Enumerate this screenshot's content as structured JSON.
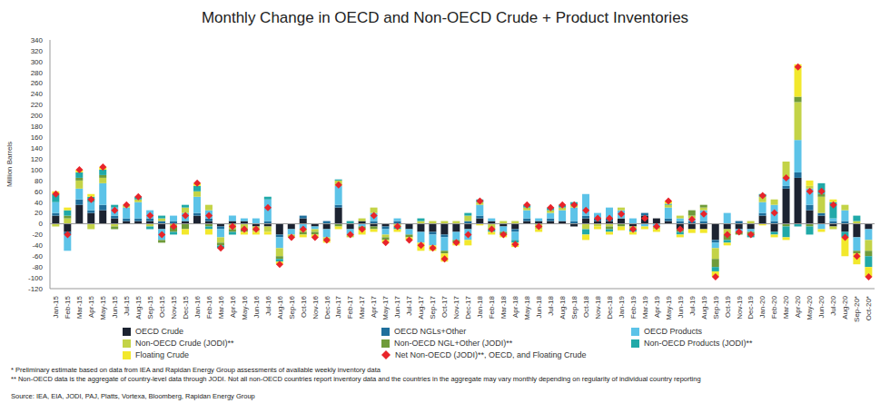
{
  "chart_data": {
    "type": "bar",
    "title": "Monthly Change in OECD and Non-OECD Crude + Product Inventories",
    "y_label": "Million Barrels",
    "stacked": true,
    "grid": false,
    "legend": "bottom",
    "ylim": [
      -120,
      340
    ],
    "yticks": [
      -120,
      -100,
      -80,
      -60,
      -40,
      -20,
      0,
      20,
      40,
      60,
      80,
      100,
      120,
      140,
      160,
      180,
      200,
      220,
      240,
      260,
      280,
      300,
      320,
      340
    ],
    "categories": [
      "Jan-15",
      "Feb-15",
      "Mar-15",
      "Apr-15",
      "May-15",
      "Jun-15",
      "Jul-15",
      "Aug-15",
      "Sep-15",
      "Oct-15",
      "Nov-15",
      "Dec-15",
      "Jan-16",
      "Feb-16",
      "Mar-16",
      "Apr-16",
      "May-16",
      "Jun-16",
      "Jul-16",
      "Aug-16",
      "Sep-16",
      "Oct-16",
      "Nov-16",
      "Dec-16",
      "Jan-17",
      "Feb-17",
      "Mar-17",
      "Apr-17",
      "May-17",
      "Jun-17",
      "Jul-17",
      "Aug-17",
      "Sep-17",
      "Oct-17",
      "Nov-17",
      "Dec-17",
      "Jan-18",
      "Feb-18",
      "Mar-18",
      "Apr-18",
      "May-18",
      "Jun-18",
      "Jul-18",
      "Aug-18",
      "Sep-18",
      "Oct-18",
      "Nov-18",
      "Dec-18",
      "Jan-19",
      "Feb-19",
      "Mar-19",
      "Apr-19",
      "May-19",
      "Jun-19",
      "Jul-19",
      "Aug-19",
      "Sep-19",
      "Oct-19",
      "Nov-19",
      "Dec-19",
      "Jan-20",
      "Feb-20",
      "Mar-20",
      "Apr-20",
      "May-20",
      "Jun-20",
      "Jul-20",
      "Aug-20",
      "Sep-20*",
      "Oct-20*"
    ],
    "series": [
      {
        "name": "OECD Crude",
        "type": "bar",
        "color": "#1c2331",
        "values": [
          15,
          -15,
          35,
          20,
          25,
          10,
          5,
          5,
          5,
          -10,
          0,
          5,
          15,
          5,
          -5,
          5,
          5,
          -5,
          -5,
          -20,
          -10,
          10,
          -5,
          -10,
          30,
          -10,
          5,
          -5,
          -5,
          0,
          -10,
          -15,
          -15,
          -20,
          -15,
          -10,
          10,
          5,
          -5,
          -10,
          5,
          5,
          5,
          5,
          -5,
          10,
          5,
          5,
          10,
          -5,
          15,
          10,
          5,
          -10,
          -10,
          -10,
          -30,
          -10,
          -10,
          -10,
          15,
          -15,
          65,
          85,
          25,
          15,
          -5,
          -15,
          -25,
          -10
        ]
      },
      {
        "name": "OECD NGLs+Other",
        "type": "bar",
        "color": "#1f6f9c",
        "values": [
          5,
          -5,
          10,
          5,
          10,
          5,
          5,
          5,
          5,
          5,
          5,
          0,
          5,
          5,
          -5,
          0,
          0,
          0,
          5,
          -5,
          0,
          5,
          0,
          5,
          5,
          0,
          0,
          5,
          -5,
          5,
          0,
          0,
          -5,
          -5,
          0,
          5,
          5,
          0,
          0,
          -5,
          5,
          0,
          5,
          0,
          5,
          5,
          5,
          5,
          0,
          0,
          5,
          0,
          5,
          5,
          5,
          5,
          -5,
          0,
          5,
          0,
          5,
          5,
          5,
          10,
          10,
          5,
          5,
          5,
          0,
          0
        ]
      },
      {
        "name": "OECD Products",
        "type": "bar",
        "color": "#5cc3e8",
        "values": [
          20,
          -30,
          20,
          15,
          40,
          15,
          20,
          30,
          15,
          -20,
          10,
          15,
          30,
          15,
          -15,
          10,
          5,
          10,
          40,
          -20,
          -10,
          -10,
          -5,
          -15,
          35,
          -10,
          -5,
          15,
          -10,
          5,
          -10,
          -20,
          -20,
          -25,
          -15,
          -20,
          20,
          5,
          -10,
          -15,
          15,
          5,
          10,
          20,
          25,
          40,
          10,
          20,
          15,
          10,
          -5,
          -5,
          20,
          5,
          5,
          20,
          -10,
          20,
          -5,
          -5,
          20,
          30,
          15,
          60,
          30,
          -10,
          5,
          20,
          -25,
          -20
        ]
      },
      {
        "name": "Non-OECD Crude (JODI)**",
        "type": "bar",
        "color": "#c3d347",
        "values": [
          -5,
          10,
          15,
          -10,
          10,
          -5,
          5,
          5,
          -5,
          5,
          -5,
          10,
          10,
          10,
          -10,
          -10,
          -10,
          -10,
          -10,
          -15,
          -5,
          -5,
          -5,
          -5,
          10,
          -5,
          5,
          10,
          -5,
          -5,
          0,
          5,
          5,
          5,
          5,
          10,
          5,
          -10,
          5,
          5,
          5,
          -10,
          5,
          5,
          5,
          -10,
          -5,
          -5,
          5,
          -5,
          0,
          -5,
          5,
          5,
          5,
          5,
          -20,
          -10,
          0,
          5,
          10,
          10,
          30,
          70,
          5,
          30,
          -5,
          10,
          5,
          -20
        ]
      },
      {
        "name": "Non-OECD NGL+Other (JODI)**",
        "type": "bar",
        "color": "#6f9b3a",
        "values": [
          0,
          5,
          5,
          0,
          5,
          -5,
          0,
          0,
          0,
          -5,
          -10,
          -10,
          0,
          -5,
          -5,
          -5,
          -5,
          0,
          0,
          -5,
          0,
          -5,
          -5,
          0,
          -5,
          0,
          -5,
          -5,
          -5,
          0,
          -5,
          0,
          0,
          -5,
          -5,
          0,
          0,
          0,
          -5,
          0,
          0,
          0,
          0,
          0,
          0,
          0,
          0,
          -5,
          -5,
          0,
          0,
          0,
          0,
          -5,
          10,
          5,
          -15,
          -10,
          -5,
          -5,
          0,
          0,
          -5,
          10,
          -5,
          5,
          0,
          0,
          -5,
          -10
        ]
      },
      {
        "name": "Non-OECD Products (JODI)**",
        "type": "bar",
        "color": "#20a9a8",
        "values": [
          15,
          10,
          10,
          10,
          10,
          5,
          0,
          5,
          -5,
          5,
          -5,
          5,
          10,
          -5,
          -5,
          -5,
          0,
          0,
          5,
          -5,
          0,
          0,
          0,
          0,
          2,
          5,
          0,
          0,
          0,
          -5,
          0,
          5,
          0,
          0,
          0,
          5,
          5,
          -5,
          0,
          -5,
          5,
          0,
          5,
          5,
          5,
          -10,
          0,
          -5,
          0,
          -5,
          0,
          0,
          2,
          -5,
          0,
          0,
          -8,
          -5,
          0,
          -5,
          5,
          -5,
          -20,
          -5,
          -15,
          20,
          30,
          -10,
          10,
          -20
        ]
      },
      {
        "name": "Floating Crude",
        "type": "bar",
        "color": "#f2e82c",
        "values": [
          5,
          5,
          5,
          5,
          5,
          0,
          0,
          0,
          0,
          0,
          0,
          -10,
          5,
          -10,
          0,
          0,
          -5,
          -5,
          -5,
          -5,
          0,
          -5,
          -5,
          -5,
          -5,
          0,
          -10,
          -5,
          -5,
          -5,
          -5,
          -15,
          -10,
          -15,
          -5,
          -10,
          -3,
          -5,
          -5,
          -8,
          0,
          -5,
          0,
          0,
          0,
          -10,
          -5,
          -5,
          -7,
          -5,
          -5,
          -5,
          5,
          -5,
          -7,
          -7,
          -10,
          -5,
          0,
          0,
          -3,
          -5,
          -5,
          60,
          10,
          -5,
          5,
          -35,
          -20,
          -18
        ]
      },
      {
        "name": "Net Non-OECD (JODI)**, OECD, and Floating Crude",
        "type": "scatter",
        "marker": "diamond",
        "color": "#e8242a",
        "values": [
          55,
          -20,
          100,
          45,
          105,
          25,
          35,
          50,
          15,
          -20,
          -5,
          15,
          75,
          15,
          -45,
          -5,
          -10,
          -10,
          30,
          -75,
          -25,
          -10,
          -25,
          -30,
          72,
          -20,
          -10,
          15,
          -35,
          -5,
          -30,
          -40,
          -45,
          -65,
          -35,
          -20,
          42,
          -10,
          -20,
          -38,
          35,
          -5,
          30,
          35,
          35,
          25,
          10,
          10,
          18,
          -10,
          10,
          -5,
          42,
          -10,
          8,
          18,
          -98,
          -20,
          -15,
          -20,
          52,
          20,
          85,
          290,
          60,
          60,
          35,
          -25,
          -60,
          -98
        ]
      }
    ],
    "notes": [
      "* Preliminary estimate based on data from IEA and Rapidan Energy Group assessments of available weekly inventory data",
      "** Non-OECD data is the aggregate of country-level data through JODI. Not all non-OECD countries report inventory data and the countries in the aggregate may vary monthly depending on regularity of individual country reporting"
    ],
    "source": "Source: IEA, EIA, JODI, PAJ, Platts, Vortexa, Bloomberg, Rapidan Energy Group"
  }
}
